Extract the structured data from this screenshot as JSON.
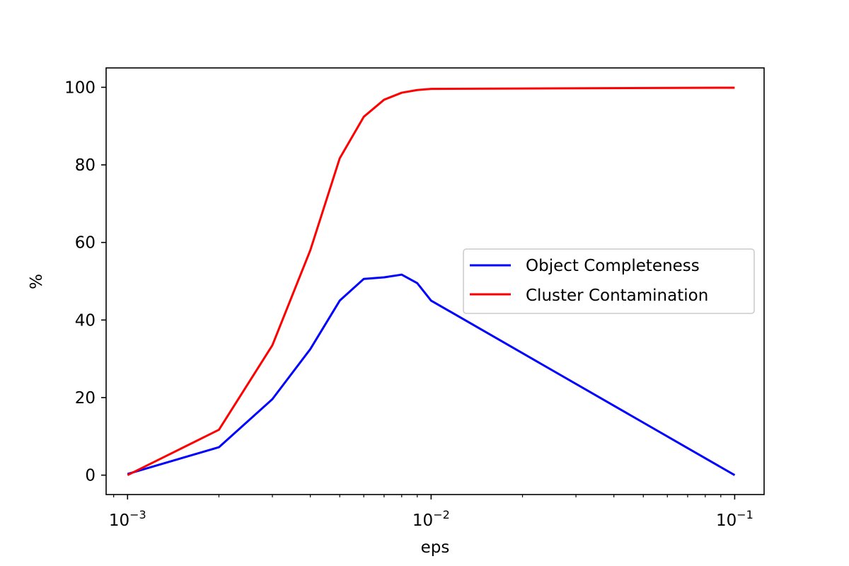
{
  "chart_data": {
    "type": "line",
    "xlabel": "eps",
    "ylabel": "%",
    "xscale": "log",
    "xlim": [
      0.00085,
      0.125
    ],
    "ylim": [
      -5,
      105
    ],
    "grid": false,
    "legend_position": "center-right",
    "x_ticks": [
      {
        "value": 0.001,
        "base": "10",
        "exponent": "−3"
      },
      {
        "value": 0.01,
        "base": "10",
        "exponent": "−2"
      },
      {
        "value": 0.1,
        "base": "10",
        "exponent": "−1"
      }
    ],
    "y_ticks": [
      0,
      20,
      40,
      60,
      80,
      100
    ],
    "series": [
      {
        "name": "Object Completeness",
        "color": "#0000ff",
        "x": [
          0.001,
          0.002,
          0.003,
          0.004,
          0.005,
          0.006,
          0.007,
          0.008,
          0.009,
          0.01,
          0.1
        ],
        "y": [
          0.3,
          7.2,
          19.6,
          32.5,
          45.0,
          50.6,
          51.0,
          51.7,
          49.5,
          45.0,
          0.0
        ]
      },
      {
        "name": "Cluster Contamination",
        "color": "#ff0000",
        "x": [
          0.001,
          0.002,
          0.003,
          0.004,
          0.005,
          0.006,
          0.007,
          0.008,
          0.009,
          0.01,
          0.1
        ],
        "y": [
          0.0,
          11.7,
          33.5,
          58.0,
          81.7,
          92.4,
          96.8,
          98.6,
          99.3,
          99.6,
          99.9
        ]
      }
    ]
  }
}
